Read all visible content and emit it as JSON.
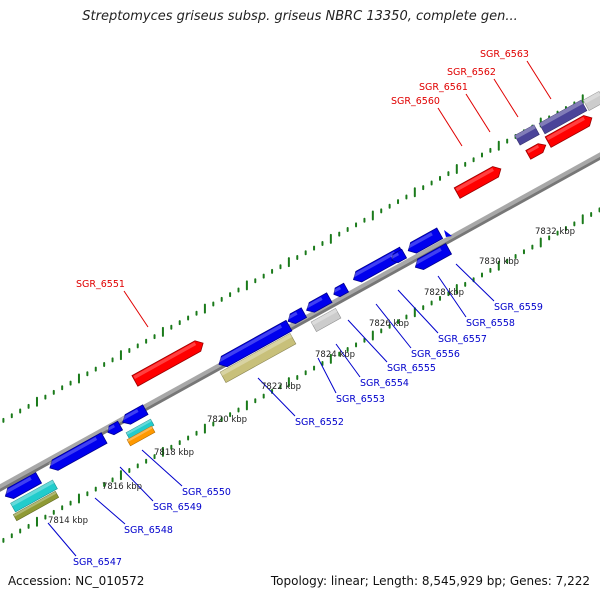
{
  "title": "Streptomyces griseus subsp. griseus NBRC 13350, complete gen...",
  "accession": "Accession: NC_010572",
  "summary": "Topology: linear; Length: 8,545,929 bp; Genes: 7,222",
  "colors": {
    "forward_gene": "#ff0000",
    "reverse_gene": "#0000ee",
    "forward_label": "#e00000",
    "reverse_label": "#0000cc",
    "backbone": "#a8a8a8",
    "tick": "#1a7a1a",
    "domain_khaki": "#c8c07a",
    "domain_cyan": "#22cccc",
    "domain_olive": "#8f9a35",
    "domain_orange": "#ff9900",
    "domain_purple": "#4b4499",
    "domain_grey": "#cccccc"
  },
  "scale_labels": [
    "7814 kbp",
    "7816 kbp",
    "7818 kbp",
    "7820 kbp",
    "7822 kbp",
    "7824 kbp",
    "7826 kbp",
    "7828 kbp",
    "7830 kbp",
    "7832 kbp"
  ],
  "forward_gene_labels": [
    "SGR_6551",
    "SGR_6560",
    "SGR_6561",
    "SGR_6562",
    "SGR_6563"
  ],
  "reverse_gene_labels": [
    "SGR_6547",
    "SGR_6548",
    "SGR_6549",
    "SGR_6550",
    "SGR_6552",
    "SGR_6553",
    "SGR_6554",
    "SGR_6555",
    "SGR_6556",
    "SGR_6557",
    "SGR_6558",
    "SGR_6559"
  ]
}
